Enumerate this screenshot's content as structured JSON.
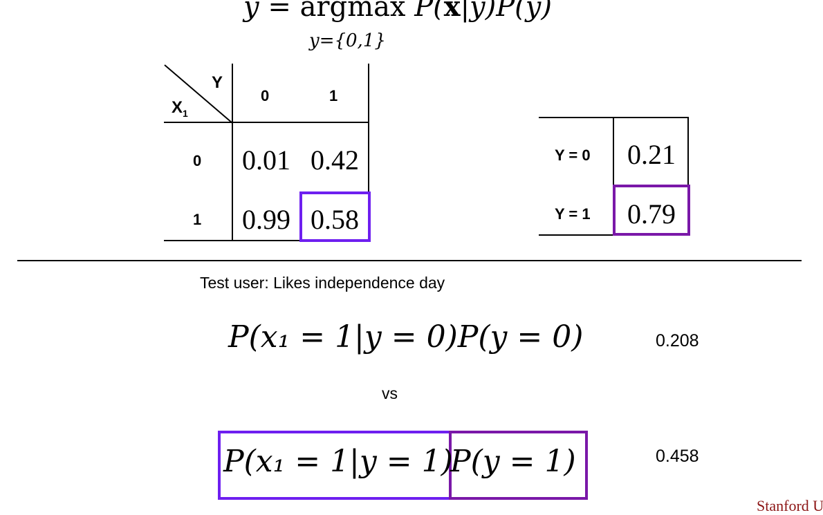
{
  "equation_top": {
    "yhat": "ŷ",
    "equals": " = ",
    "argmax": "argmax",
    "expr_open": " P(",
    "x_bold": "x",
    "expr_mid": "|y)P(y)",
    "subscript": "y={0,1}"
  },
  "likelihood_table": {
    "header_y": "Y",
    "header_x": "X",
    "header_x_sub": "1",
    "columns": [
      "0",
      "1"
    ],
    "rows": [
      {
        "label": "0",
        "cells": [
          "0.01",
          "0.42"
        ]
      },
      {
        "label": "1",
        "cells": [
          "0.99",
          "0.58"
        ]
      }
    ]
  },
  "prior_table": {
    "rows": [
      {
        "label": "Y = 0",
        "value": "0.21"
      },
      {
        "label": "Y = 1",
        "value": "0.79"
      }
    ]
  },
  "test_user": "Test user: Likes independence day",
  "comparison": {
    "expr_y0": "P(x₁ = 1|y = 0)P(y = 0)",
    "value_y0": "0.208",
    "vs": "vs",
    "expr_y1_likelihood": "P(x₁ = 1|y = 1)",
    "expr_y1_prior": "P(y = 1)",
    "value_y1": "0.458"
  },
  "footer": {
    "brand": "Stanford U"
  },
  "colors": {
    "highlight_blue_purple": "#6e1ff0",
    "highlight_violet": "#7a18a8",
    "brand_red": "#8c1515"
  }
}
